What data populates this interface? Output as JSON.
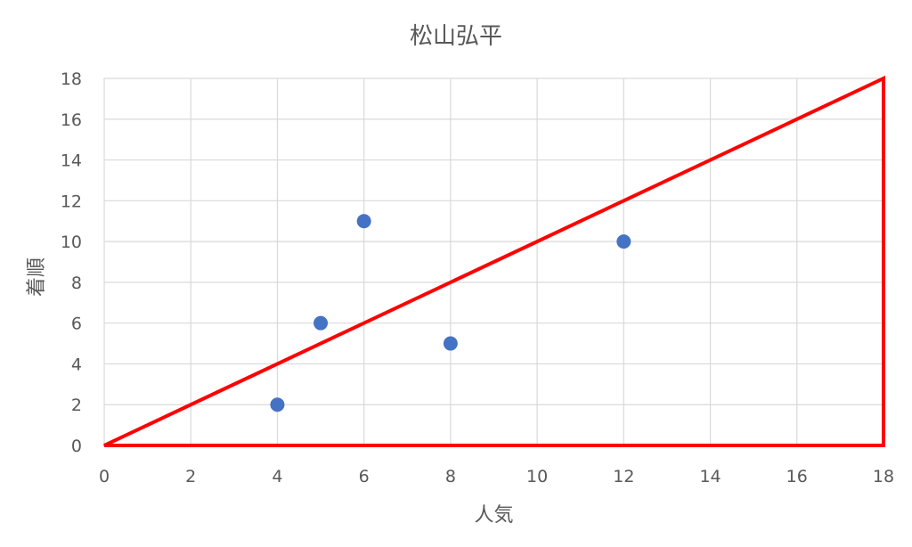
{
  "chart_data": {
    "type": "scatter",
    "title": "松山弘平",
    "xlabel": "人気",
    "ylabel": "着順",
    "xlim": [
      0,
      18
    ],
    "ylim": [
      0,
      18
    ],
    "xticks": [
      0,
      2,
      4,
      6,
      8,
      10,
      12,
      14,
      16,
      18
    ],
    "yticks": [
      0,
      2,
      4,
      6,
      8,
      10,
      12,
      14,
      16,
      18
    ],
    "grid": true,
    "series": [
      {
        "points": [
          [
            4,
            2
          ],
          [
            5,
            6
          ],
          [
            6,
            11
          ],
          [
            8,
            5
          ],
          [
            12,
            10
          ]
        ],
        "color": "#4472C4"
      }
    ],
    "annotations": [
      {
        "type": "triangle",
        "vertices": [
          [
            0,
            0
          ],
          [
            18,
            18
          ],
          [
            18,
            0
          ]
        ],
        "color": "#FF0000"
      }
    ]
  }
}
